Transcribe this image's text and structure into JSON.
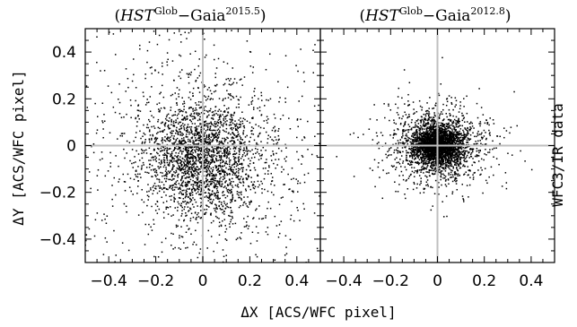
{
  "figure": {
    "xlabel": "ΔX [ACS/WFC pixel]",
    "ylabel": "ΔY [ACS/WFC pixel]",
    "right_label": "WFC3/IR data"
  },
  "chart_data": [
    {
      "type": "scatter",
      "title_parts": {
        "open": "(",
        "hst": "HST",
        "sup1": "Glob",
        "mid": "−Gaia",
        "sup2": "2015.5",
        "close": ")"
      },
      "xlim": [
        -0.5,
        0.5
      ],
      "ylim": [
        -0.5,
        0.5
      ],
      "x_ticks": [
        -0.4,
        -0.2,
        0,
        0.2,
        0.4
      ],
      "x_tick_labels": [
        "−0.4",
        "−0.2",
        "0",
        "0.2",
        "0.4"
      ],
      "y_ticks": [
        -0.4,
        -0.2,
        0,
        0.2,
        0.4
      ],
      "y_tick_labels": [
        "−0.4",
        "−0.2",
        "0",
        "0.2",
        "0.4"
      ],
      "reference_lines": {
        "x": 0,
        "y": 0
      },
      "distribution": {
        "center": [
          0.0,
          -0.05
        ],
        "core_std": [
          0.13,
          0.13
        ],
        "halo_std": [
          0.3,
          0.28
        ],
        "approx_points": 3000
      },
      "marker_color": "#000000",
      "reference_line_color": "#bfbfbf"
    },
    {
      "type": "scatter",
      "title_parts": {
        "open": "(",
        "hst": "HST",
        "sup1": "Glob",
        "mid": "−Gaia",
        "sup2": "2012.8",
        "close": ")"
      },
      "xlim": [
        -0.5,
        0.5
      ],
      "ylim": [
        -0.5,
        0.5
      ],
      "x_ticks": [
        -0.4,
        -0.2,
        0,
        0.2,
        0.4
      ],
      "x_tick_labels": [
        "−0.4",
        "−0.2",
        "0",
        "0.2",
        "0.4"
      ],
      "y_ticks": [
        -0.4,
        -0.2,
        0,
        0.2,
        0.4
      ],
      "y_tick_labels": [],
      "reference_lines": {
        "x": 0,
        "y": 0
      },
      "distribution": {
        "center": [
          0.0,
          0.0
        ],
        "core_std": [
          0.055,
          0.045
        ],
        "halo_std": [
          0.12,
          0.1
        ],
        "approx_points": 3500
      },
      "marker_color": "#000000",
      "reference_line_color": "#bfbfbf"
    }
  ]
}
